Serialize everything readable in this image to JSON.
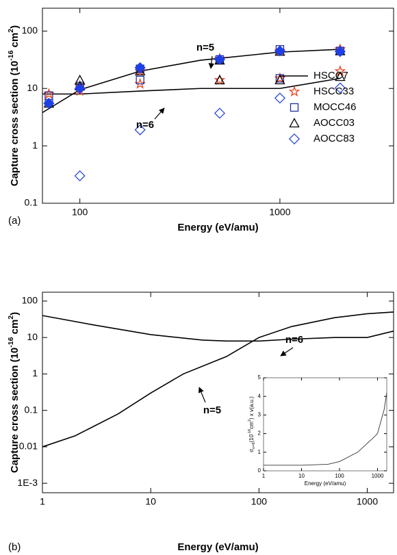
{
  "chart_data": [
    {
      "type": "scatter",
      "panel_label": "(a)",
      "xscale": "log",
      "yscale": "log",
      "x_label": "Energy (eV/amu)",
      "y_label": [
        {
          "text": "Capture cross section (10"
        },
        {
          "text": "-16",
          "shift": "super"
        },
        {
          "text": " cm"
        },
        {
          "text": "2",
          "shift": "super"
        },
        {
          "text": ")"
        }
      ],
      "xlim": [
        65,
        3700
      ],
      "xticks": [
        100,
        1000
      ],
      "ylim": [
        0.1,
        250
      ],
      "yticks": [
        0.1,
        1,
        10,
        100
      ],
      "legend": "lower right",
      "annotations": [
        "n=5",
        "n=6"
      ],
      "series": [
        {
          "name": "HSCC7",
          "kind": "line",
          "color": "#000000",
          "x": [
            65,
            100,
            200,
            400,
            1000,
            2000
          ],
          "values": [
            3.8,
            9.5,
            20,
            31,
            43,
            48
          ]
        },
        {
          "kind": "line",
          "color": "#000000",
          "x": [
            65,
            100,
            200,
            400,
            1000,
            2000
          ],
          "values": [
            8,
            8,
            9,
            10,
            10,
            15
          ]
        },
        {
          "name": "HSCC33",
          "kind": "star",
          "color": "#e8401c",
          "x": [
            70,
            100,
            100,
            200,
            200,
            500,
            500,
            1000,
            1000,
            2000,
            2000
          ],
          "values": [
            8,
            9,
            11,
            12,
            20,
            14,
            33,
            15,
            45,
            20,
            48
          ]
        },
        {
          "name": "MOCC46",
          "kind": "square",
          "color": "#1f2fa0",
          "x": [
            70,
            70,
            100,
            200,
            200,
            500,
            1000,
            1000,
            2000
          ],
          "values": [
            7.5,
            5.5,
            11,
            14,
            22,
            32,
            15,
            48,
            45
          ]
        },
        {
          "name": "AOCC03",
          "kind": "triangle",
          "color": "#000000",
          "x": [
            70,
            100,
            100,
            200,
            500,
            500,
            1000,
            1000,
            2000,
            2000
          ],
          "values": [
            5.5,
            14,
            11,
            20,
            14,
            31,
            14,
            44,
            16,
            45
          ]
        },
        {
          "name": "AOCC83",
          "kind": "diamond",
          "color": "#2a4bd7",
          "x": [
            100,
            200,
            500,
            1000,
            2000
          ],
          "values": [
            0.3,
            1.9,
            3.7,
            6.8,
            10.2
          ]
        },
        {
          "kind": "diamond",
          "filled": true,
          "color": "#1e40e6",
          "x": [
            70,
            100,
            200,
            500,
            1000,
            2000
          ],
          "values": [
            5.5,
            10,
            23,
            32,
            45,
            44
          ]
        }
      ]
    },
    {
      "type": "line",
      "panel_label": "(b)",
      "xscale": "log",
      "yscale": "log",
      "x_label": "Energy (eV/amu)",
      "y_label": [
        {
          "text": "Capture cross section (10"
        },
        {
          "text": "-16",
          "shift": "super"
        },
        {
          "text": " cm"
        },
        {
          "text": "2",
          "shift": "super"
        },
        {
          "text": ")"
        }
      ],
      "xlim": [
        1,
        1750
      ],
      "xticks": [
        1,
        10,
        100,
        1000
      ],
      "ylim": [
        0.00055,
        175
      ],
      "yticks": [
        {
          "value": 0.001,
          "label": "1E-3"
        },
        0.01,
        0.1,
        1,
        10,
        100
      ],
      "annotations": [
        "n=6",
        "n=5"
      ],
      "series": [
        {
          "kind": "line",
          "color": "#000000",
          "x": [
            1,
            3,
            10,
            30,
            50,
            100,
            200,
            500,
            1000,
            1750
          ],
          "values": [
            40,
            22,
            12,
            8.5,
            8,
            8,
            9,
            10,
            10,
            15
          ]
        },
        {
          "kind": "line",
          "color": "#000000",
          "x": [
            1,
            2,
            5,
            10,
            20,
            50,
            100,
            200,
            500,
            1000,
            1750
          ],
          "values": [
            0.01,
            0.02,
            0.08,
            0.3,
            1,
            3,
            10,
            20,
            35,
            45,
            50
          ]
        }
      ]
    },
    {
      "type": "line",
      "xscale": "log",
      "x_label": "Energy (eV/amu)",
      "y_label": [
        {
          "text": "σ"
        },
        {
          "text": "n=6",
          "shift": "sub"
        },
        {
          "text": "(10"
        },
        {
          "text": "-16",
          "shift": "super"
        },
        {
          "text": "cm"
        },
        {
          "text": "2",
          "shift": "super"
        },
        {
          "text": ") x v(a.u.)"
        }
      ],
      "xlim": [
        1,
        1750
      ],
      "xticks": [
        1,
        10,
        100,
        1000
      ],
      "ylim": [
        0,
        5
      ],
      "yticks": [
        0,
        1,
        2,
        3,
        4,
        5
      ],
      "series": [
        {
          "kind": "line",
          "color": "#333333",
          "x": [
            1,
            10,
            50,
            100,
            300,
            800,
            1000,
            1500,
            1750
          ],
          "values": [
            0.3,
            0.3,
            0.35,
            0.5,
            1.0,
            1.8,
            2.0,
            3.3,
            4.2
          ]
        }
      ]
    }
  ]
}
